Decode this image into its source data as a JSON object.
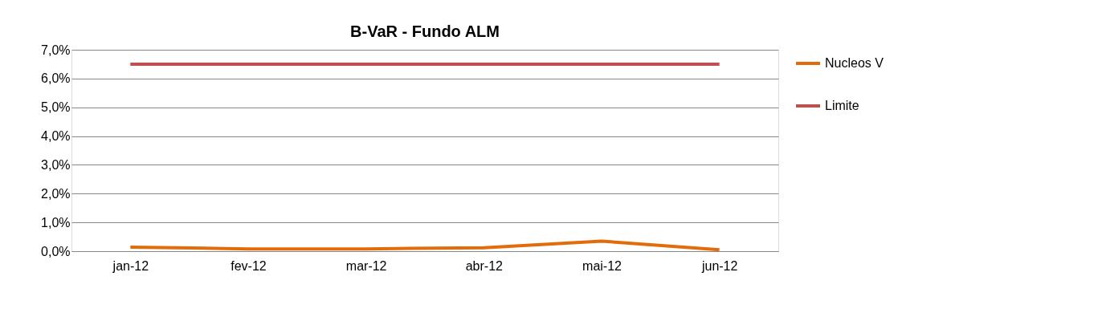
{
  "chart_data": {
    "type": "line",
    "title": "B-VaR - Fundo ALM",
    "categories": [
      "jan-12",
      "fev-12",
      "mar-12",
      "abr-12",
      "mai-12",
      "jun-12"
    ],
    "series": [
      {
        "name": "Nucleos V",
        "color": "#e36c0a",
        "values": [
          0.14,
          0.08,
          0.08,
          0.12,
          0.35,
          0.05
        ]
      },
      {
        "name": "Limite",
        "color": "#c0504d",
        "values": [
          6.5,
          6.5,
          6.5,
          6.5,
          6.5,
          6.5
        ]
      }
    ],
    "ylim": [
      0,
      7
    ],
    "yticks": [
      {
        "value": 0,
        "label": "0,0%"
      },
      {
        "value": 1,
        "label": "1,0%"
      },
      {
        "value": 2,
        "label": "2,0%"
      },
      {
        "value": 3,
        "label": "3,0%"
      },
      {
        "value": 4,
        "label": "4,0%"
      },
      {
        "value": 5,
        "label": "5,0%"
      },
      {
        "value": 6,
        "label": "6,0%"
      },
      {
        "value": 7,
        "label": "7,0%"
      }
    ],
    "grid": "y",
    "legend": "right",
    "marker": "none",
    "line_style": "solid"
  }
}
